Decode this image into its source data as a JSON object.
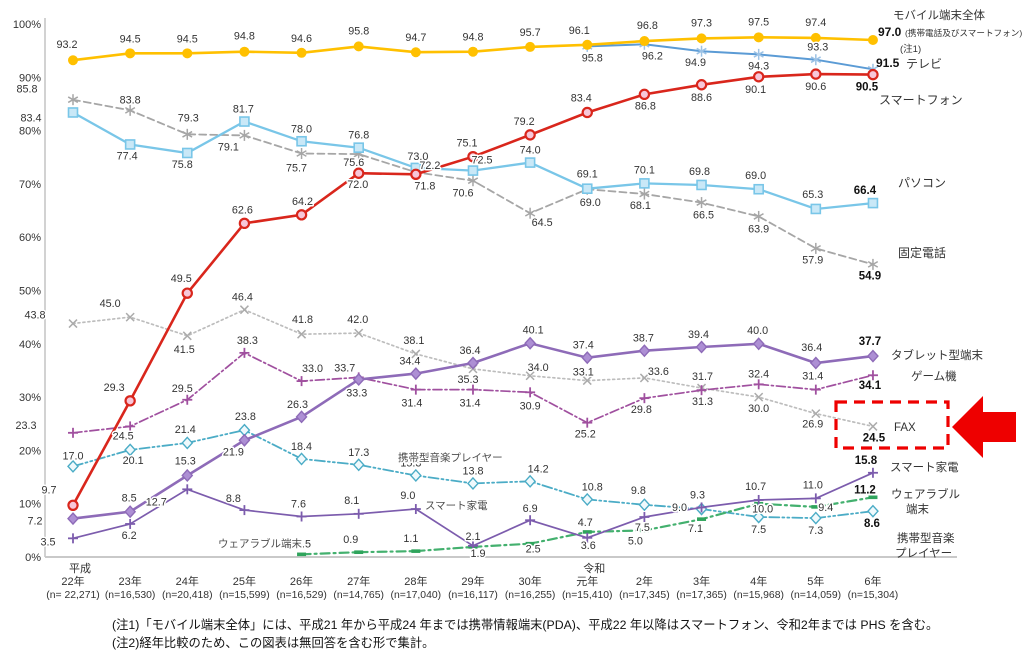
{
  "chart_data": {
    "type": "line",
    "title": "",
    "ylabel": "",
    "ylim": [
      0,
      100
    ],
    "ytick_step": 10,
    "grid": false,
    "legend_position": "right-inline",
    "categories": [
      {
        "era": "平成",
        "label": "22年",
        "n": "(n= 22,271)"
      },
      {
        "era": "",
        "label": "23年",
        "n": "(n=16,530)"
      },
      {
        "era": "",
        "label": "24年",
        "n": "(n=20,418)"
      },
      {
        "era": "",
        "label": "25年",
        "n": "(n=15,599)"
      },
      {
        "era": "",
        "label": "26年",
        "n": "(n=16,529)"
      },
      {
        "era": "",
        "label": "27年",
        "n": "(n=14,765)"
      },
      {
        "era": "",
        "label": "28年",
        "n": "(n=17,040)"
      },
      {
        "era": "",
        "label": "29年",
        "n": "(n=16,117)"
      },
      {
        "era": "",
        "label": "30年",
        "n": "(n=16,255)"
      },
      {
        "era": "令和",
        "label": "元年",
        "n": "(n=15,410)"
      },
      {
        "era": "",
        "label": "2年",
        "n": "(n=17,345)"
      },
      {
        "era": "",
        "label": "3年",
        "n": "(n=17,365)"
      },
      {
        "era": "",
        "label": "4年",
        "n": "(n=15,968)"
      },
      {
        "era": "",
        "label": "5年",
        "n": "(n=14,059)"
      },
      {
        "era": "",
        "label": "6年",
        "n": "(n=15,304)"
      }
    ],
    "series": [
      {
        "key": "mobile",
        "name": "モバイル端末全体（携帯電話及びスマートフォン）",
        "color": "#FFC000",
        "values": [
          93.2,
          94.5,
          94.5,
          94.8,
          94.6,
          95.8,
          94.7,
          94.8,
          95.7,
          96.1,
          96.8,
          97.3,
          97.5,
          97.4,
          97.0
        ]
      },
      {
        "key": "tv",
        "name": "テレビ",
        "color": "#5B9BD5",
        "values": [
          null,
          null,
          null,
          null,
          null,
          null,
          null,
          null,
          null,
          95.8,
          96.2,
          94.9,
          94.3,
          93.3,
          91.5
        ]
      },
      {
        "key": "smartphone",
        "name": "スマートフォン",
        "color": "#D9261C",
        "values": [
          9.7,
          29.3,
          49.5,
          62.6,
          64.2,
          72.0,
          71.8,
          75.1,
          79.2,
          83.4,
          86.8,
          88.6,
          90.1,
          90.6,
          90.5
        ]
      },
      {
        "key": "pc",
        "name": "パソコン",
        "color": "#79C6E8",
        "values": [
          83.4,
          77.4,
          75.8,
          81.7,
          78.0,
          76.8,
          73.0,
          72.5,
          74.0,
          69.1,
          70.1,
          69.8,
          69.0,
          65.3,
          66.4
        ]
      },
      {
        "key": "landline",
        "name": "固定電話",
        "color": "#A6A6A6",
        "values": [
          85.8,
          83.8,
          79.3,
          79.1,
          75.7,
          75.6,
          72.2,
          70.6,
          64.5,
          69.0,
          68.1,
          66.5,
          63.9,
          57.9,
          54.9
        ]
      },
      {
        "key": "fax",
        "name": "FAX",
        "color": "#BDBDBD",
        "values": [
          43.8,
          45.0,
          41.5,
          46.4,
          41.8,
          42.0,
          38.1,
          35.3,
          34.0,
          33.1,
          33.6,
          31.7,
          30.0,
          26.9,
          24.5
        ]
      },
      {
        "key": "tablet",
        "name": "タブレット型端末",
        "color": "#8E6BB8",
        "values": [
          7.2,
          8.5,
          15.3,
          21.9,
          26.3,
          33.3,
          34.4,
          36.4,
          40.1,
          37.4,
          38.7,
          39.4,
          40.0,
          36.4,
          37.7
        ]
      },
      {
        "key": "game",
        "name": "ゲーム機",
        "color": "#A0509F",
        "values": [
          23.3,
          24.5,
          29.5,
          38.3,
          33.0,
          33.7,
          31.4,
          31.4,
          30.9,
          25.2,
          29.8,
          31.3,
          32.4,
          31.4,
          34.1
        ]
      },
      {
        "key": "music",
        "name": "携帯型音楽プレイヤー",
        "color": "#4BACC6",
        "values": [
          17.0,
          20.1,
          21.4,
          23.8,
          18.4,
          17.3,
          15.3,
          13.8,
          14.2,
          10.8,
          9.8,
          9.0,
          7.5,
          7.3,
          8.6
        ]
      },
      {
        "key": "smart_appliance",
        "name": "スマート家電",
        "color": "#7C5CAD",
        "values": [
          3.5,
          6.2,
          12.7,
          8.8,
          7.6,
          8.1,
          9.0,
          2.1,
          6.9,
          3.6,
          7.5,
          9.3,
          10.7,
          11.0,
          15.8
        ]
      },
      {
        "key": "wearable",
        "name": "ウェアラブル端末",
        "color": "#43B06E",
        "values": [
          null,
          null,
          null,
          null,
          0.5,
          0.9,
          1.1,
          1.9,
          2.5,
          4.7,
          5.0,
          7.1,
          10.0,
          9.4,
          11.2
        ]
      }
    ],
    "right_labels": {
      "mobile_line1": "モバイル端末全体",
      "mobile_value": "97.0",
      "mobile_line2": "(携帯電話及びスマートフォン)",
      "mobile_note": "(注1)",
      "tv_value": "91.5",
      "tv_name": "テレビ",
      "smartphone_name": "スマートフォン",
      "pc_name": "パソコン",
      "landline_name": "固定電話",
      "tablet_name": "タブレット型端末",
      "game_name": "ゲーム機",
      "fax_name": "FAX",
      "smart_name": "スマート家電",
      "wearable_name": "ウェアラブル",
      "wearable_name2": "端末",
      "music_name1": "携帯型音楽",
      "music_name2": "プレイヤー"
    },
    "inner_annotations": {
      "music": "携帯型音楽プレイヤー",
      "smart": "スマート家電",
      "wearable": "ウェアラブル端末"
    },
    "highlight": {
      "series": "FAX",
      "value": 24.5,
      "marker": "red-dashed-box-and-arrow"
    }
  },
  "footnotes": [
    "(注1)「モバイル端末全体」には、平成21 年から平成24 年までは携帯情報端末(PDA)、平成22 年以降はスマートフォン、令和2年までは PHS を含む。",
    "(注2)経年比較のため、この図表は無回答を含む形で集計。"
  ]
}
